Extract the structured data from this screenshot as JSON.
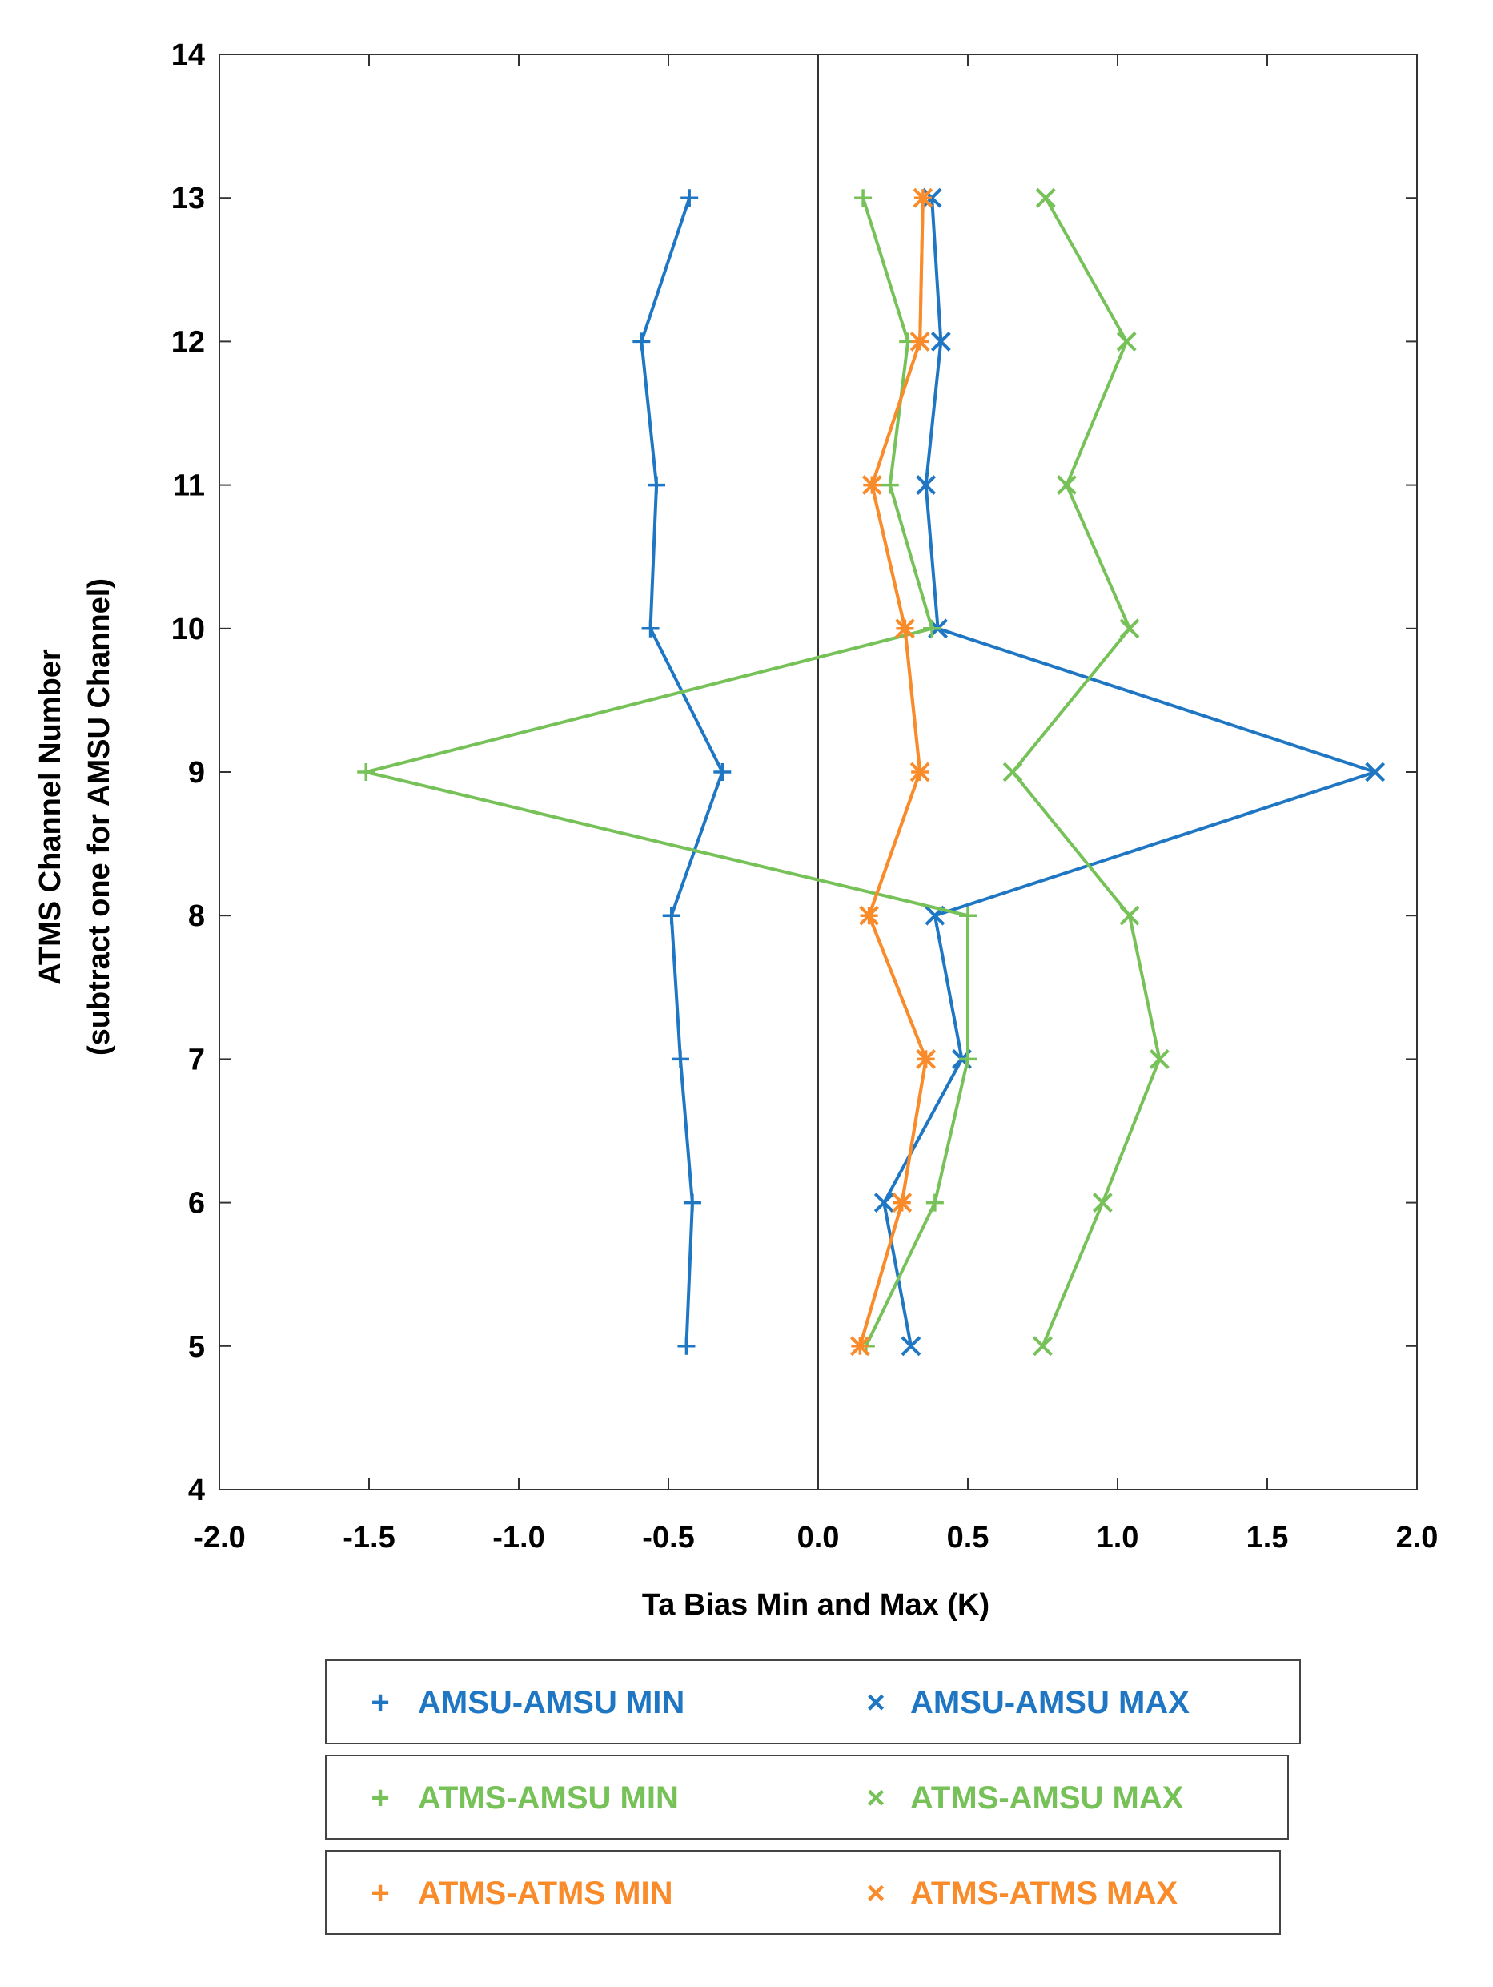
{
  "chart_data": {
    "type": "line",
    "orientation": "horizontal",
    "title": "",
    "xlabel": "Ta Bias Min and Max (K)",
    "ylabel_line1": "ATMS Channel Number",
    "ylabel_line2": "(subtract one for AMSU Channel)",
    "xlim": [
      -2.0,
      2.0
    ],
    "ylim": [
      4,
      14
    ],
    "xticks": [
      -2.0,
      -1.5,
      -1.0,
      -0.5,
      0.0,
      0.5,
      1.0,
      1.5,
      2.0
    ],
    "xtick_labels": [
      "-2.0",
      "-1.5",
      "-1.0",
      "-0.5",
      "0.0",
      "0.5",
      "1.0",
      "1.5",
      "2.0"
    ],
    "yticks": [
      4,
      5,
      6,
      7,
      8,
      9,
      10,
      11,
      12,
      13,
      14
    ],
    "ytick_labels": [
      "4",
      "5",
      "6",
      "7",
      "8",
      "9",
      "10",
      "11",
      "12",
      "13",
      "14"
    ],
    "zero_line_x": 0.0,
    "channels": [
      5,
      6,
      7,
      8,
      9,
      10,
      11,
      12,
      13
    ],
    "series": [
      {
        "name": "AMSU-AMSU MIN",
        "marker": "+",
        "color": "#1f77c4",
        "values": [
          -0.44,
          -0.42,
          -0.46,
          -0.49,
          -0.32,
          -0.56,
          -0.54,
          -0.59,
          -0.43
        ]
      },
      {
        "name": "AMSU-AMSU MAX",
        "marker": "x",
        "color": "#1f77c4",
        "values": [
          0.31,
          0.22,
          0.48,
          0.39,
          1.86,
          0.4,
          0.36,
          0.41,
          0.38
        ]
      },
      {
        "name": "ATMS-AMSU MIN",
        "marker": "+",
        "color": "#77c159",
        "values": [
          0.16,
          0.39,
          0.5,
          0.5,
          -1.51,
          0.38,
          0.24,
          0.3,
          0.15
        ]
      },
      {
        "name": "ATMS-AMSU MAX",
        "marker": "x",
        "color": "#77c159",
        "values": [
          0.75,
          0.95,
          1.14,
          1.04,
          0.65,
          1.04,
          0.83,
          1.03,
          0.76
        ]
      },
      {
        "name": "ATMS-ATMS MIN",
        "marker": "+",
        "color": "#f98b2a",
        "values": [
          0.14,
          0.28,
          0.36,
          0.17,
          0.34,
          0.29,
          0.18,
          0.34,
          0.35
        ]
      },
      {
        "name": "ATMS-ATMS MAX",
        "marker": "x",
        "color": "#f98b2a",
        "values": [
          0.14,
          0.28,
          0.36,
          0.17,
          0.34,
          0.29,
          0.18,
          0.34,
          0.35
        ]
      }
    ],
    "legend_rows": [
      [
        {
          "label": "AMSU-AMSU MIN",
          "symbol": "+",
          "color": "#1f77c4"
        },
        {
          "label": "AMSU-AMSU MAX",
          "symbol": "×",
          "color": "#1f77c4"
        }
      ],
      [
        {
          "label": "ATMS-AMSU MIN",
          "symbol": "+",
          "color": "#77c159"
        },
        {
          "label": "ATMS-AMSU MAX",
          "symbol": "×",
          "color": "#77c159"
        }
      ],
      [
        {
          "label": "ATMS-ATMS MIN",
          "symbol": "+",
          "color": "#f98b2a"
        },
        {
          "label": "ATMS-ATMS MAX",
          "symbol": "×",
          "color": "#f98b2a"
        }
      ]
    ],
    "legend_position": "bottom",
    "grid": false
  }
}
